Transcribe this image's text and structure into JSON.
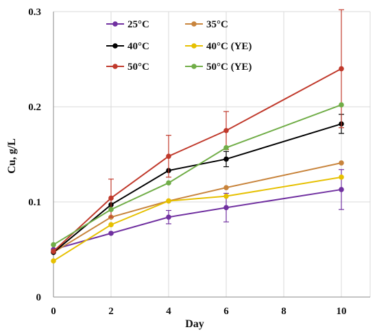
{
  "chart_data": {
    "type": "line",
    "title": "",
    "xlabel": "Day",
    "ylabel": "Cu, g/L",
    "xlim": [
      0,
      11
    ],
    "ylim": [
      0,
      0.3
    ],
    "xticks": [
      0,
      2,
      4,
      6,
      8,
      10
    ],
    "xtick_labels": [
      "0",
      "2",
      "4",
      "6",
      "8",
      "10"
    ],
    "yticks": [
      0,
      0.1,
      0.2,
      0.3
    ],
    "ytick_labels": [
      "0",
      "0.1",
      "0.2",
      "0.3"
    ],
    "grid": true,
    "legend_position": "top",
    "series": [
      {
        "name": "25°C",
        "color": "#7030a0",
        "x": [
          0,
          2,
          4,
          6,
          10
        ],
        "y": [
          0.05,
          0.067,
          0.084,
          0.094,
          0.113
        ],
        "err": [
          0,
          0,
          0.007,
          0.015,
          0.021
        ]
      },
      {
        "name": "35°C",
        "color": "#c8843c",
        "x": [
          0,
          2,
          4,
          6,
          10
        ],
        "y": [
          0.047,
          0.084,
          0.101,
          0.115,
          0.141
        ],
        "err": [
          0,
          0,
          0,
          0,
          0
        ]
      },
      {
        "name": "40°C",
        "color": "#000000",
        "x": [
          0,
          2,
          4,
          6,
          10
        ],
        "y": [
          0.047,
          0.097,
          0.133,
          0.145,
          0.182
        ],
        "err": [
          0,
          0,
          0,
          0.008,
          0.01
        ]
      },
      {
        "name": "40°C (YE)",
        "color": "#e6c000",
        "x": [
          0,
          2,
          4,
          6,
          10
        ],
        "y": [
          0.038,
          0.076,
          0.101,
          0.106,
          0.126
        ],
        "err": [
          0,
          0,
          0,
          0,
          0
        ]
      },
      {
        "name": "50°C",
        "color": "#c0392b",
        "x": [
          0,
          2,
          4,
          6,
          10
        ],
        "y": [
          0.048,
          0.104,
          0.148,
          0.175,
          0.24
        ],
        "err": [
          0,
          0.02,
          0.022,
          0.02,
          0.062
        ]
      },
      {
        "name": "50°C (YE)",
        "color": "#70ad47",
        "x": [
          0,
          2,
          4,
          6,
          10
        ],
        "y": [
          0.055,
          0.092,
          0.12,
          0.157,
          0.202
        ],
        "err": [
          0,
          0,
          0,
          0,
          0
        ]
      }
    ]
  }
}
